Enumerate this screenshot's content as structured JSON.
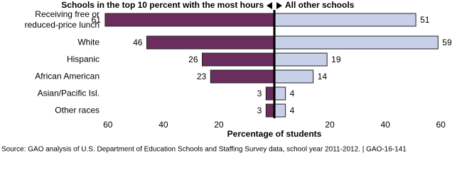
{
  "chart_data": {
    "type": "diverging_bar",
    "categories": [
      "Receiving free or reduced-price lunch",
      "White",
      "Hispanic",
      "African American",
      "Asian/Pacific Isl.",
      "Other races"
    ],
    "series": [
      {
        "name": "Schools in the top 10 percent with the most hours",
        "color": "#6b2c5e",
        "values": [
          61,
          46,
          26,
          23,
          3,
          3
        ]
      },
      {
        "name": "All other schools",
        "color": "#c8cfe9",
        "values": [
          51,
          59,
          19,
          14,
          4,
          4
        ]
      }
    ],
    "xlim": [
      0,
      62
    ],
    "xticks": [
      20,
      40,
      60
    ],
    "xlabel": "Percentage of students",
    "source": "Source: GAO analysis of U.S. Department of Education Schools and Staffing Survey data, school year 2011-2012.  |  GAO-16-141"
  }
}
